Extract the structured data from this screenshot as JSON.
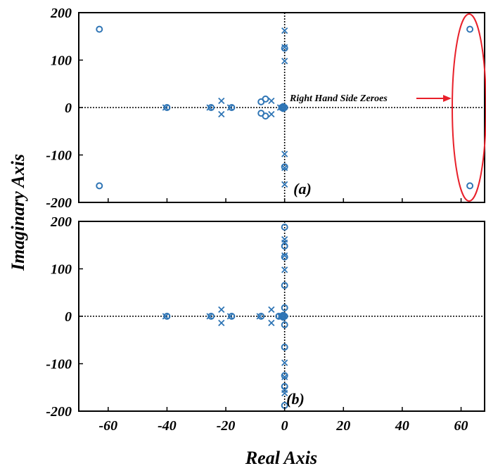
{
  "colors": {
    "marker": "#2F75B5",
    "annotation": "#E8202A",
    "axes": "#000000"
  },
  "chart_data": {
    "type": "scatter",
    "subtype": "pole-zero map",
    "xlabel": "Real Axis",
    "ylabel": "Imaginary Axis",
    "xlim": [
      -70,
      68
    ],
    "xticks": [
      -60,
      -40,
      -20,
      0,
      20,
      40,
      60
    ],
    "xtick_labels": [
      "-60",
      "-40",
      "-20",
      "0",
      "20",
      "40",
      "60"
    ],
    "panels": [
      {
        "label": "(a)",
        "ylim": [
          -200,
          200
        ],
        "yticks": [
          -200,
          -100,
          0,
          100,
          200
        ],
        "ytick_labels": [
          "-200",
          "-100",
          "0",
          "100",
          "200"
        ],
        "series": [
          {
            "kind": "zero",
            "marker": "circle",
            "points": [
              [
                -63,
                165
              ],
              [
                -63,
                -165
              ],
              [
                -40,
                0
              ],
              [
                -25,
                0
              ],
              [
                -18,
                0
              ],
              [
                -8,
                12
              ],
              [
                -8,
                -12
              ],
              [
                -6.5,
                18
              ],
              [
                -6.5,
                -18
              ],
              [
                -1,
                0
              ],
              [
                -0.5,
                2
              ],
              [
                -0.5,
                -2
              ],
              [
                0,
                0
              ],
              [
                0,
                125
              ],
              [
                0,
                -125
              ],
              [
                63,
                165
              ],
              [
                63,
                -165
              ]
            ]
          },
          {
            "kind": "pole",
            "marker": "x",
            "points": [
              [
                -40.5,
                0
              ],
              [
                -25.5,
                0
              ],
              [
                -21.5,
                14
              ],
              [
                -21.5,
                -14
              ],
              [
                -18.5,
                0
              ],
              [
                -4.5,
                14
              ],
              [
                -4.5,
                -14
              ],
              [
                -1.5,
                0
              ],
              [
                -0.5,
                0
              ],
              [
                0,
                162
              ],
              [
                0,
                -162
              ],
              [
                0,
                98
              ],
              [
                0,
                -98
              ],
              [
                0,
                127
              ],
              [
                0,
                -127
              ]
            ]
          }
        ],
        "annotation": {
          "text": "Right Hand Side Zeroes",
          "target": "zeros at 63 ± 165j"
        }
      },
      {
        "label": "(b)",
        "ylim": [
          -200,
          200
        ],
        "yticks": [
          -200,
          -100,
          0,
          100,
          200
        ],
        "ytick_labels": [
          "-200",
          "-100",
          "0",
          "100",
          "200"
        ],
        "series": [
          {
            "kind": "zero",
            "marker": "circle",
            "points": [
              [
                -40,
                0
              ],
              [
                -25,
                0
              ],
              [
                -18,
                0
              ],
              [
                -8,
                0
              ],
              [
                -2,
                0
              ],
              [
                -1,
                0
              ],
              [
                -0.5,
                2
              ],
              [
                -0.5,
                -2
              ],
              [
                0,
                0
              ],
              [
                0,
                18
              ],
              [
                0,
                -18
              ],
              [
                0,
                65
              ],
              [
                0,
                -65
              ],
              [
                0,
                125
              ],
              [
                0,
                -125
              ],
              [
                0,
                148
              ],
              [
                0,
                -148
              ],
              [
                0,
                188
              ],
              [
                0,
                -188
              ]
            ]
          },
          {
            "kind": "pole",
            "marker": "x",
            "points": [
              [
                -40.5,
                0
              ],
              [
                -25.5,
                0
              ],
              [
                -21.5,
                14
              ],
              [
                -21.5,
                -14
              ],
              [
                -18.5,
                0
              ],
              [
                -8.5,
                0
              ],
              [
                -4.5,
                14
              ],
              [
                -4.5,
                -14
              ],
              [
                -1.5,
                0
              ],
              [
                -0.5,
                0
              ],
              [
                0,
                98
              ],
              [
                0,
                -98
              ],
              [
                0,
                128
              ],
              [
                0,
                -128
              ],
              [
                0,
                155
              ],
              [
                0,
                -155
              ],
              [
                0,
                162
              ],
              [
                0,
                -162
              ]
            ]
          }
        ]
      }
    ]
  }
}
